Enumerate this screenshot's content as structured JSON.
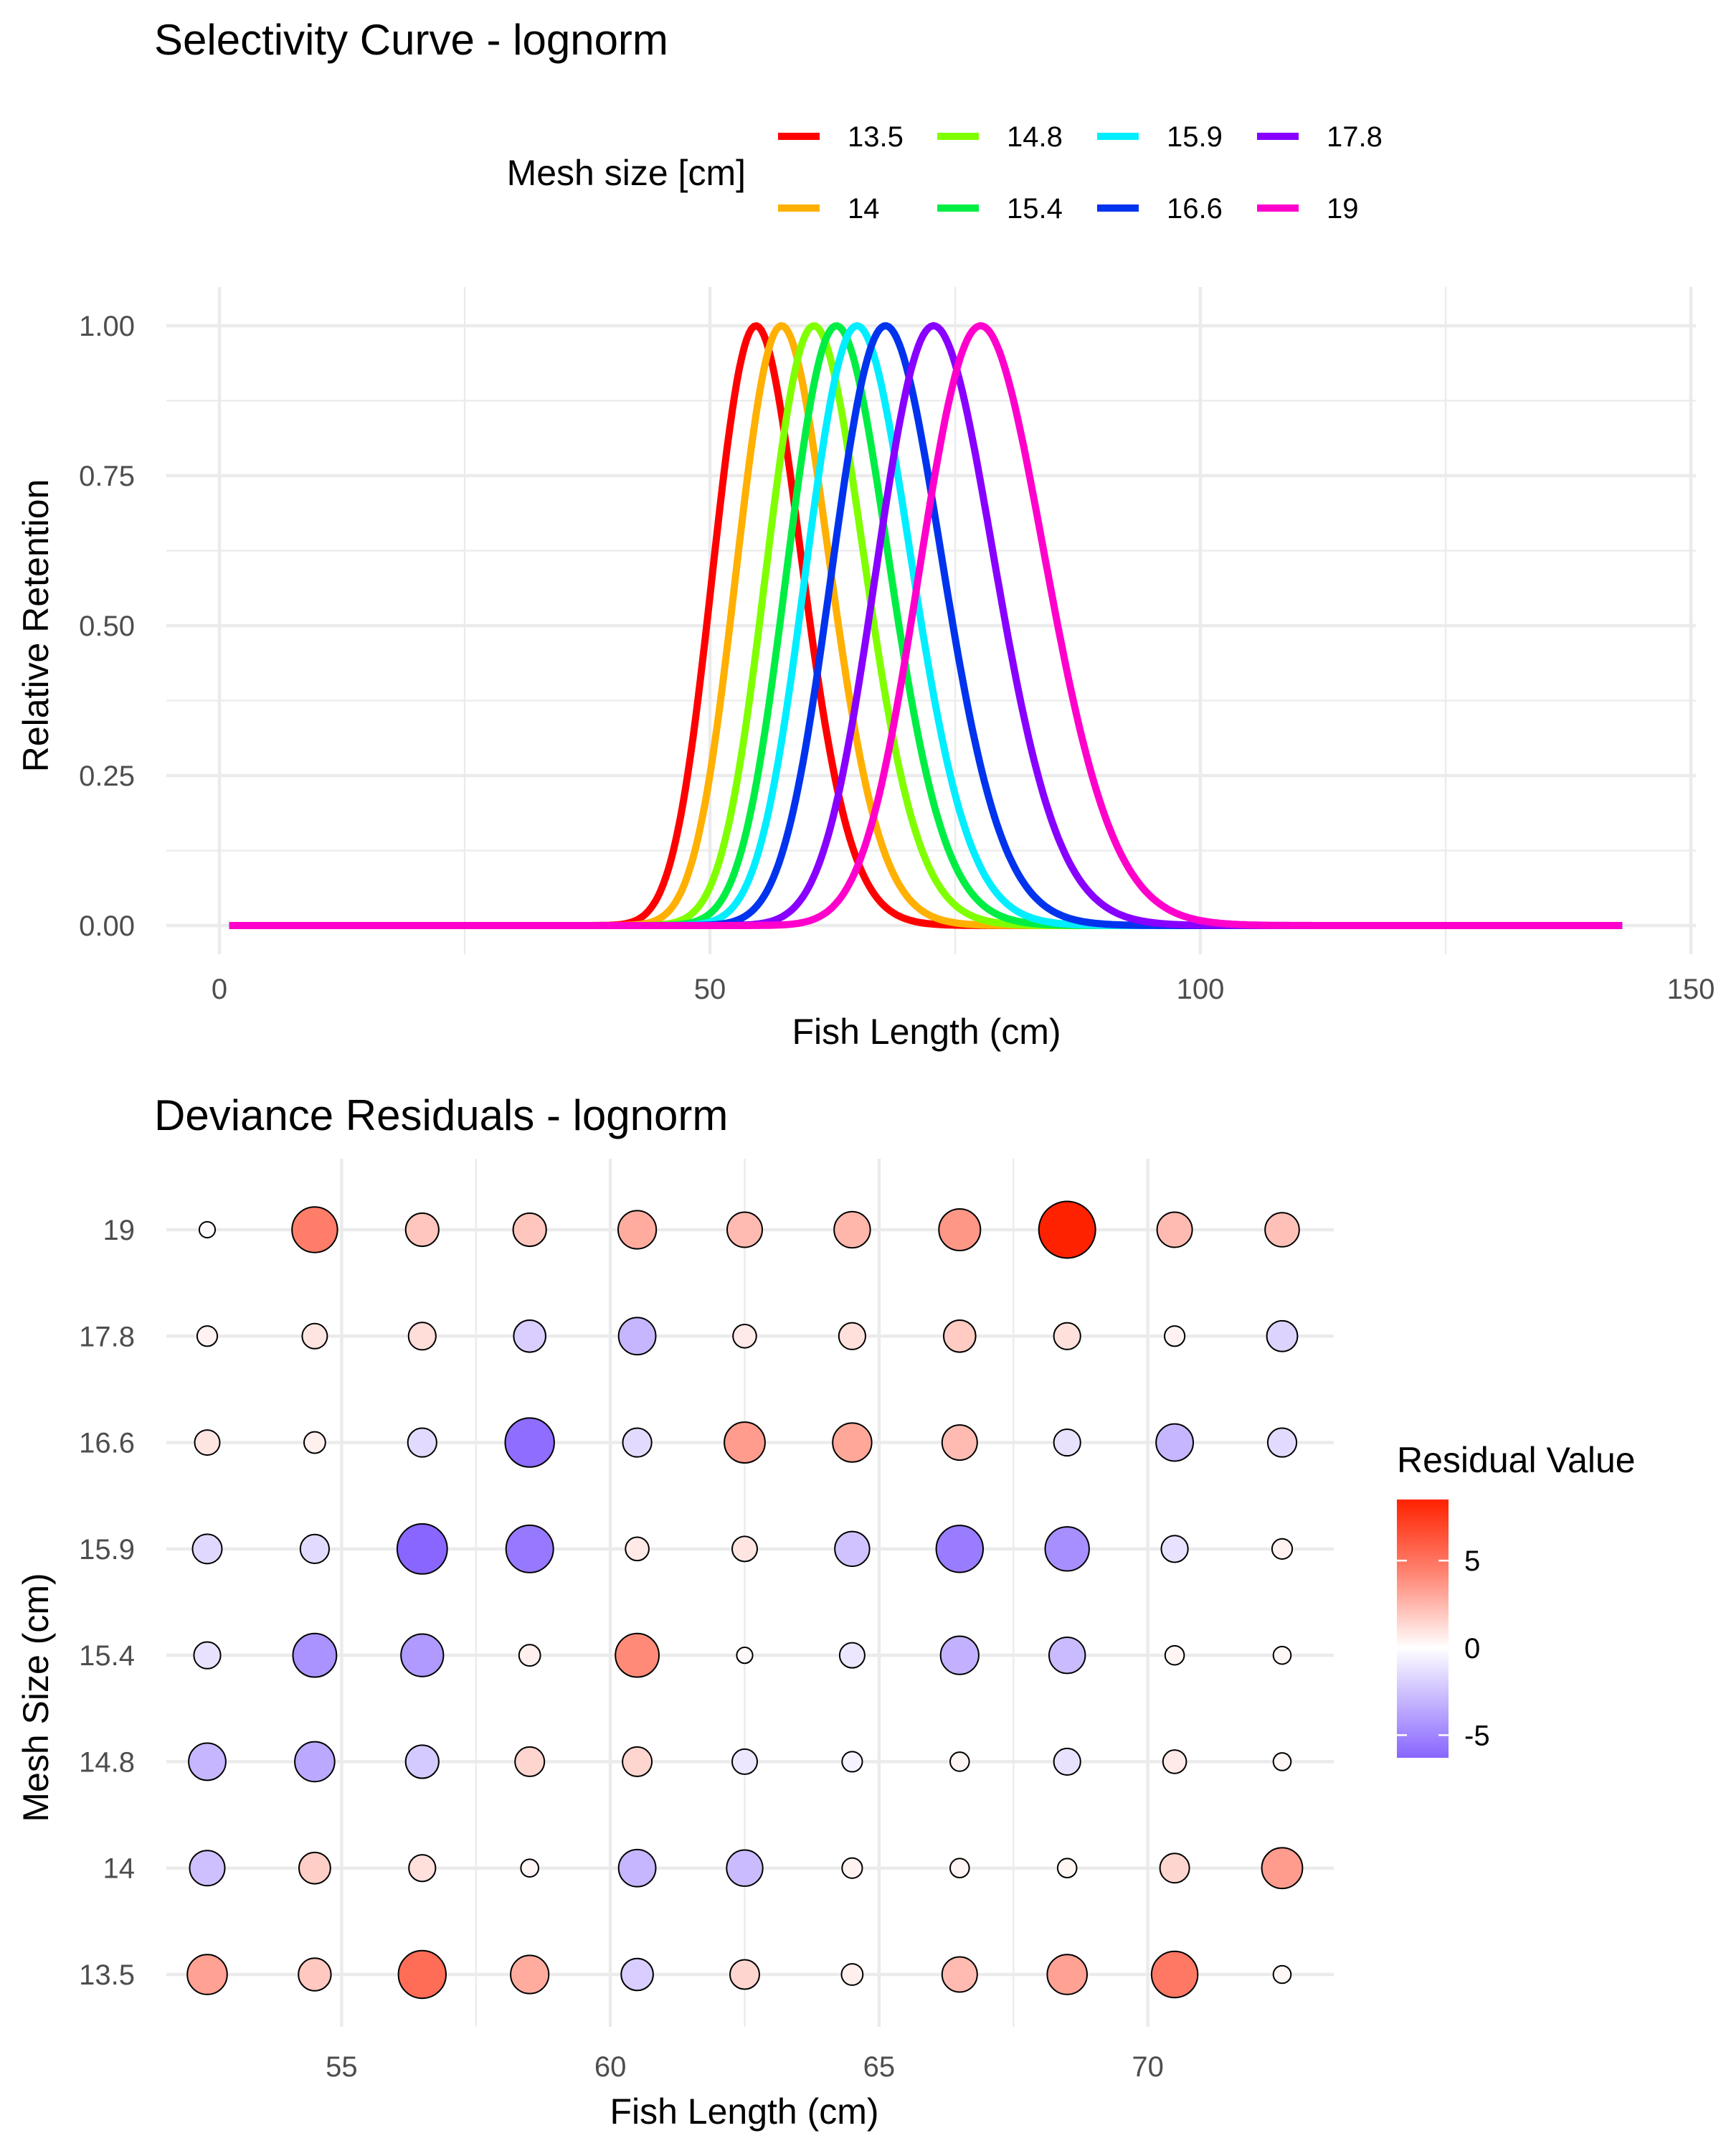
{
  "chart_data": [
    {
      "type": "line",
      "title": "Selectivity Curve - lognorm",
      "xlabel": "Fish Length (cm)",
      "ylabel": "Relative Retention",
      "xlim": [
        0,
        150
      ],
      "ylim": [
        0,
        1
      ],
      "x_ticks": [
        "0",
        "50",
        "100",
        "150"
      ],
      "y_ticks": [
        "0.00",
        "0.25",
        "0.50",
        "0.75",
        "1.00"
      ],
      "x_range": [
        1,
        143
      ],
      "grid": true,
      "legend": {
        "title": "Mesh size [cm]",
        "position": "top"
      },
      "series": [
        {
          "name": "13.5",
          "mode_length": 54.7,
          "log_sd": 0.082,
          "color": "#ff0000"
        },
        {
          "name": "14",
          "mode_length": 57.3,
          "log_sd": 0.082,
          "color": "#ffb000"
        },
        {
          "name": "14.8",
          "mode_length": 60.6,
          "log_sd": 0.082,
          "color": "#80ff00"
        },
        {
          "name": "15.4",
          "mode_length": 62.9,
          "log_sd": 0.082,
          "color": "#00ee44"
        },
        {
          "name": "15.9",
          "mode_length": 65.0,
          "log_sd": 0.082,
          "color": "#00eeff"
        },
        {
          "name": "16.6",
          "mode_length": 67.9,
          "log_sd": 0.082,
          "color": "#0033ee"
        },
        {
          "name": "17.8",
          "mode_length": 72.8,
          "log_sd": 0.082,
          "color": "#8800ff"
        },
        {
          "name": "19",
          "mode_length": 77.6,
          "log_sd": 0.082,
          "color": "#ff00cc"
        }
      ]
    },
    {
      "type": "scatter",
      "title": "Deviance Residuals - lognorm",
      "xlabel": "Fish Length (cm)",
      "ylabel": "Mesh Size (cm)",
      "xlim": [
        51.5,
        73.5
      ],
      "x_ticks": [
        "55",
        "60",
        "65",
        "70"
      ],
      "x": [
        52.5,
        54.5,
        56.5,
        58.5,
        60.5,
        62.5,
        64.5,
        66.5,
        68.5,
        70.5,
        72.5
      ],
      "categories": [
        "13.5",
        "14",
        "14.8",
        "15.4",
        "15.9",
        "16.6",
        "17.8",
        "19"
      ],
      "residuals": {
        "19": [
          0.2,
          5.0,
          2.2,
          2.2,
          3.2,
          2.6,
          2.8,
          4.0,
          8.5,
          2.6,
          2.4
        ],
        "17.8": [
          0.5,
          1.0,
          1.3,
          -2.0,
          -3.0,
          0.8,
          1.2,
          2.0,
          1.2,
          0.5,
          -1.8
        ],
        "16.6": [
          1.0,
          0.6,
          -1.5,
          -6.0,
          -1.5,
          3.8,
          3.4,
          2.6,
          -1.2,
          -3.0,
          -1.5
        ],
        "15.9": [
          -1.6,
          -1.5,
          -6.3,
          -5.5,
          0.8,
          1.0,
          -2.5,
          -5.4,
          -4.6,
          -1.2,
          0.5
        ],
        "15.4": [
          -1.2,
          -4.5,
          -4.2,
          0.6,
          4.5,
          0.2,
          -1.0,
          -3.2,
          -2.8,
          0.4,
          0.3
        ],
        "14.8": [
          -3.0,
          -3.6,
          -2.2,
          1.6,
          1.6,
          -1.0,
          -0.5,
          0.4,
          -1.2,
          0.8,
          0.3
        ],
        "14": [
          -2.6,
          1.9,
          1.2,
          0.3,
          -3.0,
          -2.8,
          0.5,
          0.4,
          0.4,
          1.6,
          3.8
        ],
        "13.5": [
          3.6,
          2.1,
          5.6,
          3.2,
          -2.0,
          1.6,
          0.6,
          2.6,
          3.6,
          5.2,
          0.3
        ]
      },
      "size_encoding": "abs(residual)",
      "legend": {
        "title": "Residual Value",
        "position": "right",
        "ticks": [
          "5",
          "0",
          "-5"
        ],
        "range": [
          -6.3,
          8.5
        ],
        "low_color": "#8866ff",
        "mid_color": "#ffffff",
        "high_color": "#ff2200"
      }
    }
  ]
}
